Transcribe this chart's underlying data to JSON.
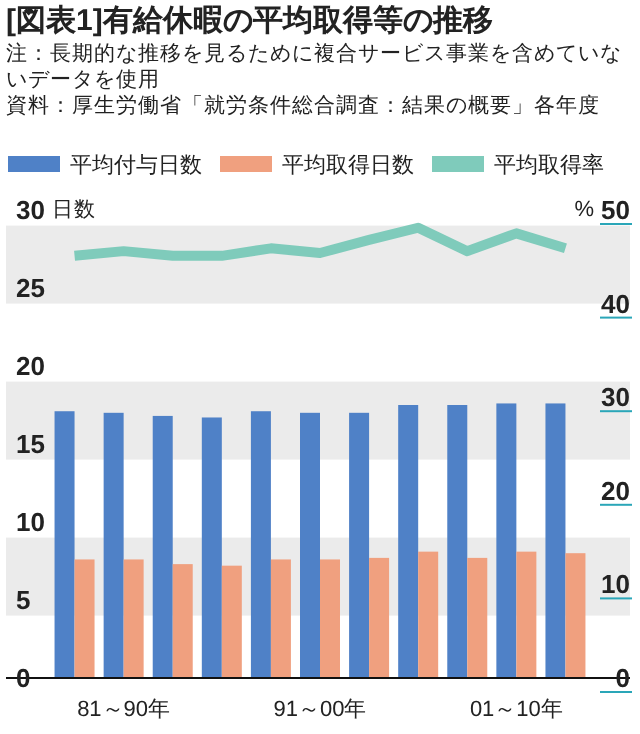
{
  "chart_data": {
    "type": "bar",
    "title": "[図表1]有給休暇の平均取得等の推移",
    "annotations": [
      "注：長期的な推移を見るために複合サービス事業を含めていないデータを使用",
      "資料：厚生労働省「就労条件総合調査：結果の概要」各年度"
    ],
    "categories": [
      null,
      "81～90年",
      null,
      null,
      null,
      "91～00年",
      null,
      null,
      null,
      "01～10年",
      null
    ],
    "ylabel": "日数",
    "y2label": "%",
    "ylim": [
      0,
      30
    ],
    "yticks": [
      0,
      5,
      10,
      15,
      20,
      25,
      30
    ],
    "y2lim": [
      0,
      50
    ],
    "y2ticks": [
      0,
      10,
      20,
      30,
      40,
      50
    ],
    "bands": [
      {
        "axis": "y",
        "from": 4,
        "to": 9,
        "color": "#ebebeb"
      },
      {
        "axis": "y",
        "from": 14,
        "to": 19,
        "color": "#ebebeb"
      },
      {
        "axis": "y",
        "from": 24,
        "to": 29,
        "color": "#ebebeb"
      }
    ],
    "legend": "top",
    "grid": false,
    "series": [
      {
        "name": "平均付与日数",
        "color": "#4f81c7",
        "values": [
          17.1,
          17.0,
          16.8,
          16.7,
          17.1,
          17.0,
          17.0,
          17.5,
          17.5,
          17.6,
          17.6
        ]
      },
      {
        "name": "平均取得日数",
        "color": "#f0a07f",
        "values": [
          7.6,
          7.6,
          7.3,
          7.2,
          7.6,
          7.6,
          7.7,
          8.1,
          7.7,
          8.1,
          8.0
        ]
      },
      {
        "name": "平均取得率",
        "type": "line",
        "axis": "y2",
        "color": "#7fcbbb",
        "values": [
          46.6,
          47.1,
          46.6,
          46.6,
          47.4,
          46.9,
          48.3,
          49.6,
          47.1,
          49.0,
          47.4
        ]
      }
    ]
  }
}
